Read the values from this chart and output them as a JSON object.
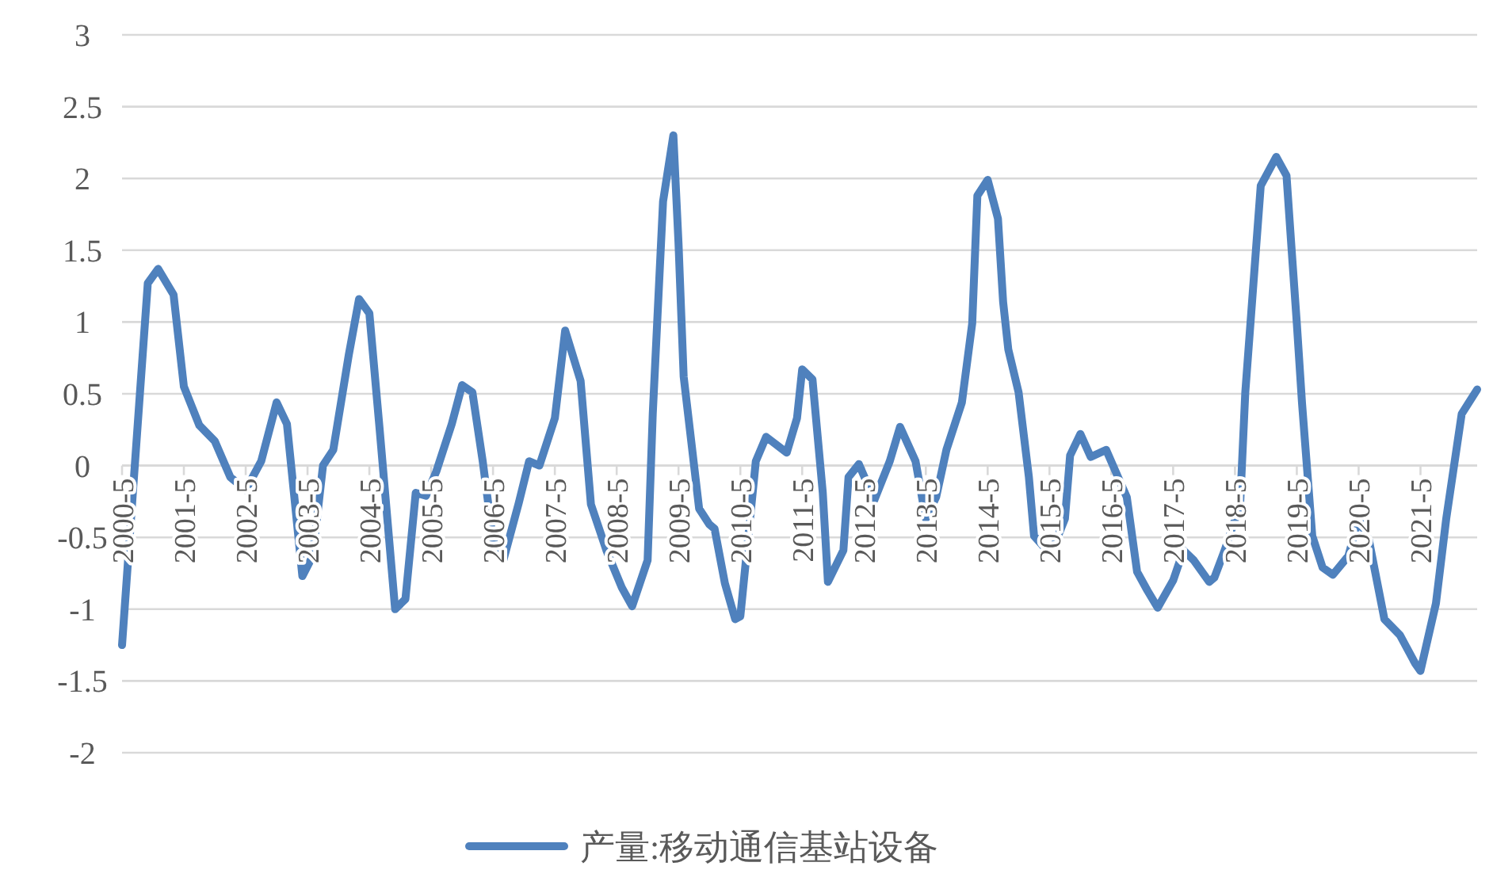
{
  "chart_data": {
    "type": "line",
    "legend": "bottom",
    "grid": "y",
    "line_style": "solid",
    "marker": "none",
    "xlim": [
      "2000-05",
      "2022-04"
    ],
    "xticks": [
      {
        "value": "2000-05",
        "label": "2000-5"
      },
      {
        "value": "2001-05",
        "label": "2001-5"
      },
      {
        "value": "2002-05",
        "label": "2002-5"
      },
      {
        "value": "2003-05",
        "label": "2003-5"
      },
      {
        "value": "2004-05",
        "label": "2004-5"
      },
      {
        "value": "2005-05",
        "label": "2005-5"
      },
      {
        "value": "2006-05",
        "label": "2006-5"
      },
      {
        "value": "2007-05",
        "label": "2007-5"
      },
      {
        "value": "2008-05",
        "label": "2008-5"
      },
      {
        "value": "2009-05",
        "label": "2009-5"
      },
      {
        "value": "2010-05",
        "label": "2010-5"
      },
      {
        "value": "2011-05",
        "label": "2011-5"
      },
      {
        "value": "2012-05",
        "label": "2012-5"
      },
      {
        "value": "2013-05",
        "label": "2013-5"
      },
      {
        "value": "2014-05",
        "label": "2014-5"
      },
      {
        "value": "2015-05",
        "label": "2015-5"
      },
      {
        "value": "2016-05",
        "label": "2016-5"
      },
      {
        "value": "2017-05",
        "label": "2017-5"
      },
      {
        "value": "2018-05",
        "label": "2018-5"
      },
      {
        "value": "2019-05",
        "label": "2019-5"
      },
      {
        "value": "2020-05",
        "label": "2020-5"
      },
      {
        "value": "2021-05",
        "label": "2021-5"
      }
    ],
    "ylim": [
      -2,
      3
    ],
    "yticks": [
      -2,
      -1.5,
      -1,
      -0.5,
      0,
      0.5,
      1,
      1.5,
      2,
      2.5,
      3
    ],
    "x": [
      "2000-05",
      "2000-09",
      "2000-10",
      "2000-12",
      "2001-03",
      "2001-05",
      "2001-08",
      "2001-11",
      "2002-02",
      "2002-05",
      "2002-08",
      "2002-11",
      "2003-01",
      "2003-04",
      "2003-06",
      "2003-08",
      "2003-10",
      "2004-01",
      "2004-03",
      "2004-05",
      "2004-07",
      "2004-10",
      "2004-12",
      "2005-02",
      "2005-04",
      "2005-06",
      "2005-09",
      "2005-11",
      "2006-01",
      "2006-03",
      "2006-05",
      "2006-07",
      "2006-10",
      "2006-12",
      "2007-02",
      "2007-05",
      "2007-07",
      "2007-10",
      "2007-12",
      "2008-03",
      "2008-06",
      "2008-08",
      "2008-11",
      "2008-12",
      "2009-02",
      "2009-04",
      "2009-05",
      "2009-06",
      "2009-09",
      "2009-11",
      "2009-12",
      "2010-02",
      "2010-04",
      "2010-05",
      "2010-08",
      "2010-10",
      "2011-02",
      "2011-04",
      "2011-05",
      "2011-07",
      "2011-09",
      "2011-10",
      "2012-01",
      "2012-02",
      "2012-04",
      "2012-07",
      "2012-10",
      "2012-12",
      "2013-03",
      "2013-05",
      "2013-07",
      "2013-09",
      "2013-12",
      "2014-02",
      "2014-03",
      "2014-05",
      "2014-07",
      "2014-08",
      "2014-09",
      "2014-11",
      "2015-01",
      "2015-02",
      "2015-04",
      "2015-06",
      "2015-08",
      "2015-09",
      "2015-11",
      "2016-01",
      "2016-04",
      "2016-08",
      "2016-10",
      "2016-12",
      "2017-02",
      "2017-05",
      "2017-07",
      "2017-09",
      "2017-12",
      "2018-01",
      "2018-03",
      "2018-06",
      "2018-07",
      "2018-08",
      "2018-09",
      "2018-10",
      "2019-01",
      "2019-03",
      "2019-04",
      "2019-05",
      "2019-06",
      "2019-08",
      "2019-10",
      "2019-12",
      "2020-03",
      "2020-05",
      "2020-07",
      "2020-10",
      "2021-01",
      "2021-04",
      "2021-05",
      "2021-08",
      "2021-10",
      "2022-01",
      "2022-04"
    ],
    "series": [
      {
        "name": "产量:移动通信基站设备",
        "color": "#4f81bd",
        "values": [
          -1.25,
          0.77,
          1.27,
          1.37,
          1.19,
          0.55,
          0.28,
          0.17,
          -0.08,
          -0.17,
          0.03,
          0.44,
          0.29,
          -0.77,
          -0.63,
          0,
          0.11,
          0.77,
          1.16,
          1.06,
          0.25,
          -1.0,
          -0.93,
          -0.19,
          -0.21,
          -0.04,
          0.29,
          0.56,
          0.51,
          0.03,
          -0.52,
          -0.66,
          -0.26,
          0.03,
          0,
          0.33,
          0.94,
          0.59,
          -0.27,
          -0.59,
          -0.85,
          -0.98,
          -0.66,
          0.36,
          1.84,
          2.3,
          1.55,
          0.62,
          -0.3,
          -0.41,
          -0.44,
          -0.82,
          -1.07,
          -1.05,
          0.03,
          0.2,
          0.09,
          0.33,
          0.67,
          0.6,
          -0.19,
          -0.81,
          -0.59,
          -0.08,
          0.01,
          -0.24,
          0.03,
          0.27,
          0.03,
          -0.37,
          -0.22,
          0.11,
          0.44,
          0.99,
          1.88,
          1.99,
          1.72,
          1.14,
          0.81,
          0.51,
          -0.08,
          -0.49,
          -0.57,
          -0.55,
          -0.37,
          0.07,
          0.22,
          0.06,
          0.11,
          -0.22,
          -0.74,
          -0.87,
          -0.99,
          -0.8,
          -0.59,
          -0.66,
          -0.81,
          -0.78,
          -0.59,
          -0.27,
          0.51,
          0.99,
          1.47,
          1.95,
          2.15,
          2.02,
          1.5,
          0.99,
          0.44,
          -0.49,
          -0.71,
          -0.76,
          -0.63,
          -0.37,
          -0.52,
          -1.07,
          -1.18,
          -1.38,
          -1.43,
          -0.96,
          -0.37,
          0.36,
          0.53
        ]
      }
    ]
  }
}
